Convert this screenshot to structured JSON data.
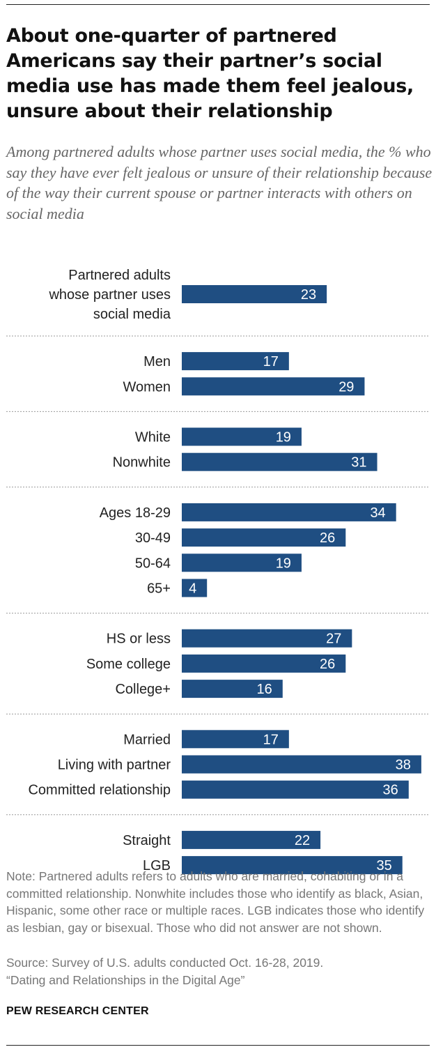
{
  "title": "About one-quarter of partnered Americans say their partner’s social media use has made them feel jealous, unsure about their relationship",
  "subtitle": "Among partnered adults whose partner uses social media, the % who say they have ever felt jealous or unsure of their relationship because of the way their current spouse or partner interacts with others on social media",
  "note": "Note: Partnered adults refers to adults who are married, cohabiting or in a committed relationship. Nonwhite includes those who identify as black, Asian, Hispanic, some other race or multiple races. LGB indicates those who identify as lesbian, gay or bisexual. Those who did not answer are not shown.",
  "source_line1": "Source: Survey of U.S. adults conducted Oct. 16-28, 2019.",
  "source_line2": "“Dating and Relationships in the Digital Age”",
  "brand": "PEW RESEARCH CENTER",
  "colors": {
    "bar": "#1f4e82",
    "bar_label": "#ffffff",
    "category": "#222222",
    "divider": "#999999"
  },
  "chart_data": {
    "type": "bar",
    "orientation": "horizontal",
    "title": "About one-quarter of partnered Americans say their partner’s social media use has made them feel jealous, unsure about their relationship",
    "xlabel": "",
    "ylabel": "",
    "xlim": [
      0,
      40
    ],
    "grid": false,
    "legend": "none",
    "groups": [
      {
        "categories": [
          {
            "label": [
              "Partnered adults",
              "whose partner uses",
              "social media"
            ],
            "value": 23
          }
        ]
      },
      {
        "categories": [
          {
            "label": [
              "Men"
            ],
            "value": 17
          },
          {
            "label": [
              "Women"
            ],
            "value": 29
          }
        ]
      },
      {
        "categories": [
          {
            "label": [
              "White"
            ],
            "value": 19
          },
          {
            "label": [
              "Nonwhite"
            ],
            "value": 31
          }
        ]
      },
      {
        "categories": [
          {
            "label": [
              "Ages 18-29"
            ],
            "value": 34
          },
          {
            "label": [
              "30-49"
            ],
            "value": 26
          },
          {
            "label": [
              "50-64"
            ],
            "value": 19
          },
          {
            "label": [
              "65+"
            ],
            "value": 4
          }
        ]
      },
      {
        "categories": [
          {
            "label": [
              "HS or less"
            ],
            "value": 27
          },
          {
            "label": [
              "Some college"
            ],
            "value": 26
          },
          {
            "label": [
              "College+"
            ],
            "value": 16
          }
        ]
      },
      {
        "categories": [
          {
            "label": [
              "Married"
            ],
            "value": 17
          },
          {
            "label": [
              "Living with partner"
            ],
            "value": 38
          },
          {
            "label": [
              "Committed relationship"
            ],
            "value": 36
          }
        ]
      },
      {
        "categories": [
          {
            "label": [
              "Straight"
            ],
            "value": 22
          },
          {
            "label": [
              "LGB"
            ],
            "value": 35
          }
        ]
      }
    ]
  }
}
